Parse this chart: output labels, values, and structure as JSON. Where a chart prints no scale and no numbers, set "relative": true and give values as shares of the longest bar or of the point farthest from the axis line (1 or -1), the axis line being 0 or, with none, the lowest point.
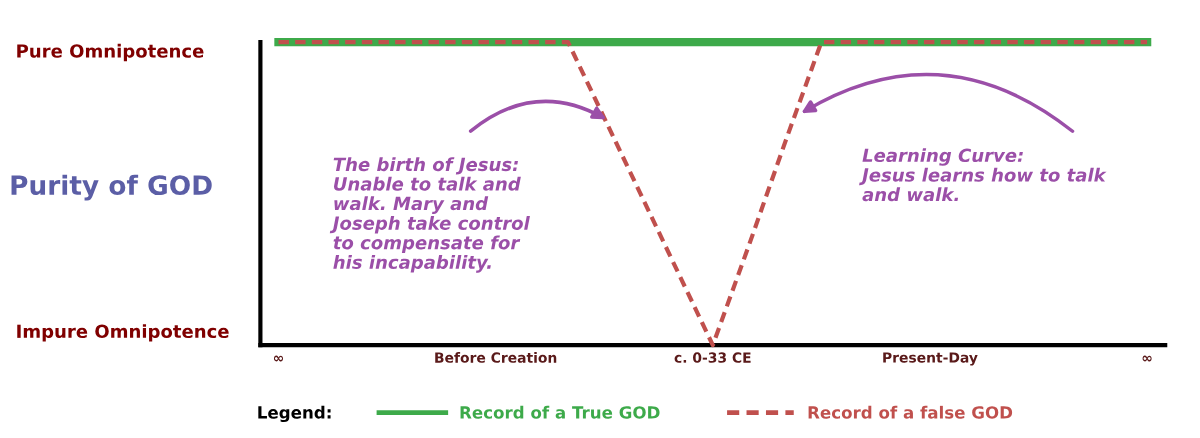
{
  "chart_data": {
    "type": "line",
    "relative": true,
    "ylabel": "Purity of GOD",
    "categories": [
      "∞",
      null,
      null,
      null,
      null,
      null,
      "Before Creation",
      null,
      null,
      null,
      null,
      null,
      "c. 0-33 CE",
      null,
      null,
      null,
      null,
      null,
      "Present-Day",
      null,
      null,
      null,
      null,
      null,
      "∞"
    ],
    "series": [
      {
        "name": "Record of a True GOD",
        "color": "#3daa4a",
        "line_style": "solid",
        "values": [
          1,
          1,
          1,
          1,
          1,
          1,
          1,
          1,
          1,
          1,
          1,
          1,
          1,
          1,
          1,
          1,
          1,
          1,
          1,
          1,
          1,
          1,
          1,
          1,
          1
        ]
      },
      {
        "name": "Record of a false GOD",
        "color": "#c0504d",
        "line_style": "dashed",
        "values": [
          1,
          1,
          1,
          1,
          1,
          1,
          1,
          1,
          1,
          0.75,
          0.5,
          0.25,
          0,
          0.33,
          0.67,
          1,
          1,
          1,
          1,
          1,
          1,
          1,
          1,
          1,
          1
        ]
      }
    ],
    "annotations": [
      "Pure Omnipotence",
      "Impure Omnipotence",
      "The birth of Jesus:\nUnable to talk and\nwalk. Mary and\nJoseph take control\nto compensate for\nhis incapability.",
      "Learning Curve:\nJesus learns how to talk\nand walk."
    ],
    "legend": "bottom",
    "legend_title": "Legend:",
    "grid": false
  }
}
